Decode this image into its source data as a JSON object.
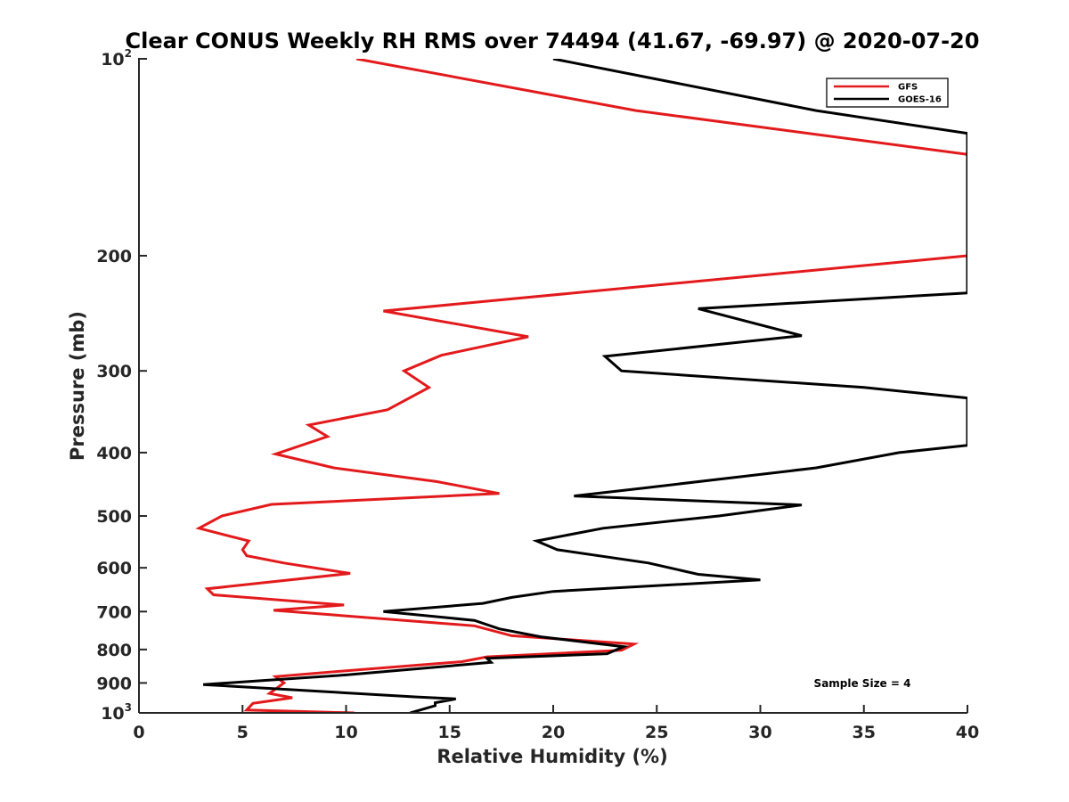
{
  "chart_data": {
    "type": "line",
    "title": "Clear CONUS Weekly RH RMS over 74494 (41.67, -69.97) @ 2020-07-20",
    "xlabel": "Relative Humidity (%)",
    "ylabel": "Pressure (mb)",
    "xlim": [
      0,
      40
    ],
    "ylim": [
      100,
      1000
    ],
    "yscale": "log",
    "y_reversed": true,
    "grid": false,
    "legend_position": "top-right",
    "x_ticks": [
      0,
      5,
      10,
      15,
      20,
      25,
      30,
      35,
      40
    ],
    "x_tick_labels": [
      "0",
      "5",
      "10",
      "15",
      "20",
      "25",
      "30",
      "35",
      "40"
    ],
    "y_ticks": [
      {
        "value": 100,
        "label": "10",
        "exponent": "2"
      },
      {
        "value": 200,
        "label": "200"
      },
      {
        "value": 300,
        "label": "300"
      },
      {
        "value": 400,
        "label": "400"
      },
      {
        "value": 500,
        "label": "500"
      },
      {
        "value": 600,
        "label": "600"
      },
      {
        "value": 700,
        "label": "700"
      },
      {
        "value": 800,
        "label": "800"
      },
      {
        "value": 900,
        "label": "900"
      },
      {
        "value": 1000,
        "label": "10",
        "exponent": "3"
      }
    ],
    "series": [
      {
        "name": "GFS",
        "color": "#e31a1c",
        "points": [
          [
            10.5,
            100
          ],
          [
            24,
            120
          ],
          [
            40,
            140
          ],
          [
            40,
            200
          ],
          [
            11.8,
            243
          ],
          [
            18.8,
            266
          ],
          [
            14.6,
            284
          ],
          [
            12.8,
            300
          ],
          [
            14,
            318
          ],
          [
            12,
            344
          ],
          [
            8.2,
            363
          ],
          [
            9.1,
            378
          ],
          [
            6.6,
            402
          ],
          [
            9.4,
            422
          ],
          [
            14.4,
            443
          ],
          [
            17.4,
            462
          ],
          [
            6.4,
            480
          ],
          [
            4,
            500
          ],
          [
            2.9,
            522
          ],
          [
            5.3,
            546
          ],
          [
            5,
            563
          ],
          [
            5.2,
            575
          ],
          [
            7,
            590
          ],
          [
            10.2,
            612
          ],
          [
            3.3,
            646
          ],
          [
            3.6,
            660
          ],
          [
            9.9,
            684
          ],
          [
            6.5,
            697
          ],
          [
            16.2,
            736
          ],
          [
            18,
            762
          ],
          [
            23.9,
            785
          ],
          [
            23.3,
            802
          ],
          [
            16.8,
            821
          ],
          [
            15.6,
            835
          ],
          [
            10,
            862
          ],
          [
            6.6,
            880
          ],
          [
            7,
            900
          ],
          [
            6.3,
            934
          ],
          [
            7.4,
            948
          ],
          [
            5.5,
            967
          ],
          [
            5.2,
            990
          ],
          [
            10.4,
            1000
          ]
        ]
      },
      {
        "name": "GOES-16",
        "color": "#000000",
        "points": [
          [
            20,
            100
          ],
          [
            32.7,
            120
          ],
          [
            40,
            130
          ],
          [
            40,
            228
          ],
          [
            27,
            241
          ],
          [
            32,
            265
          ],
          [
            22.5,
            285
          ],
          [
            23.3,
            300
          ],
          [
            35,
            318
          ],
          [
            40,
            330
          ],
          [
            40,
            390
          ],
          [
            36.7,
            400
          ],
          [
            32.7,
            422
          ],
          [
            24.4,
            453
          ],
          [
            21,
            466
          ],
          [
            32,
            481
          ],
          [
            28,
            500
          ],
          [
            22.4,
            522
          ],
          [
            19.2,
            546
          ],
          [
            20.2,
            563
          ],
          [
            24.6,
            590
          ],
          [
            27,
            614
          ],
          [
            30,
            626
          ],
          [
            20,
            652
          ],
          [
            18,
            666
          ],
          [
            16.6,
            680
          ],
          [
            11.8,
            700
          ],
          [
            16.2,
            722
          ],
          [
            17.4,
            744
          ],
          [
            19.4,
            765
          ],
          [
            23.4,
            792
          ],
          [
            22.6,
            812
          ],
          [
            16.8,
            825
          ],
          [
            17,
            837
          ],
          [
            10,
            875
          ],
          [
            3.1,
            905
          ],
          [
            13.3,
            945
          ],
          [
            15.3,
            952
          ],
          [
            14.3,
            965
          ],
          [
            14.3,
            975
          ],
          [
            13.1,
            1000
          ]
        ]
      }
    ],
    "annotation": "Sample Size = 4"
  }
}
